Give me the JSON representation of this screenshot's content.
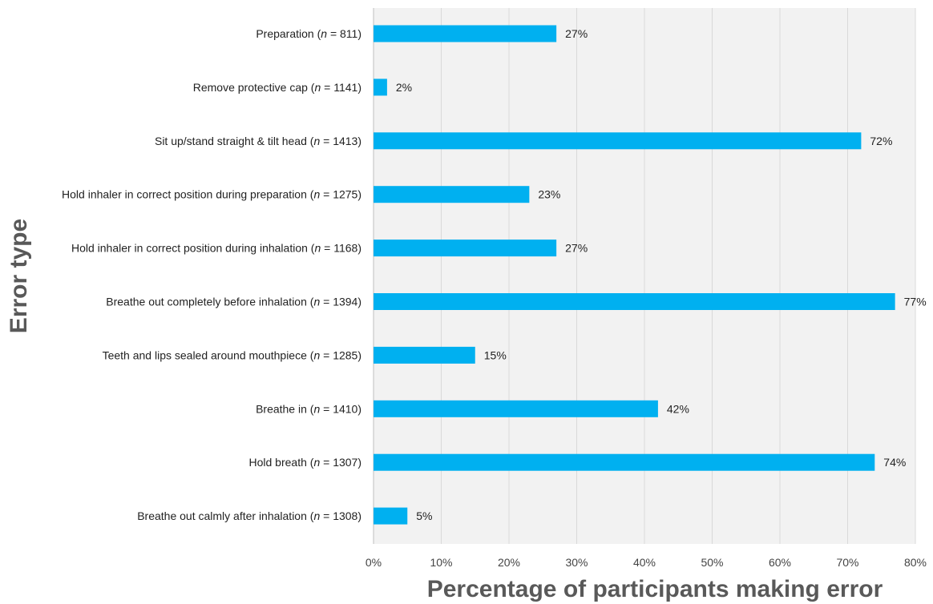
{
  "chart_data": {
    "type": "bar",
    "orientation": "horizontal",
    "categories": [
      {
        "label": "Preparation",
        "n": "811"
      },
      {
        "label": "Remove protective cap",
        "n": "1141"
      },
      {
        "label": "Sit up/stand straight & tilt head",
        "n": "1413"
      },
      {
        "label": "Hold inhaler in correct position during preparation",
        "n": "1275"
      },
      {
        "label": "Hold inhaler in correct position during inhalation",
        "n": "1168"
      },
      {
        "label": "Breathe out completely before inhalation",
        "n": "1394"
      },
      {
        "label": "Teeth and lips sealed around mouthpiece",
        "n": "1285"
      },
      {
        "label": "Breathe in",
        "n": "1410"
      },
      {
        "label": "Hold breath",
        "n": "1307"
      },
      {
        "label": "Breathe out calmly after inhalation",
        "n": "1308"
      }
    ],
    "values": [
      27,
      2,
      72,
      23,
      27,
      77,
      15,
      42,
      74,
      5
    ],
    "value_suffix": "%",
    "n_prefix": "n",
    "n_sep": " = ",
    "xlim": [
      0,
      80
    ],
    "xticks": [
      0,
      10,
      20,
      30,
      40,
      50,
      60,
      70,
      80
    ],
    "xtick_suffix": "%",
    "xlabel": "Percentage of participants making error",
    "ylabel": "Error type",
    "grid": true,
    "colors": {
      "bar": "#00B0F0",
      "plot_background": "#F2F2F2",
      "gridline": "#D9D9D9"
    }
  }
}
